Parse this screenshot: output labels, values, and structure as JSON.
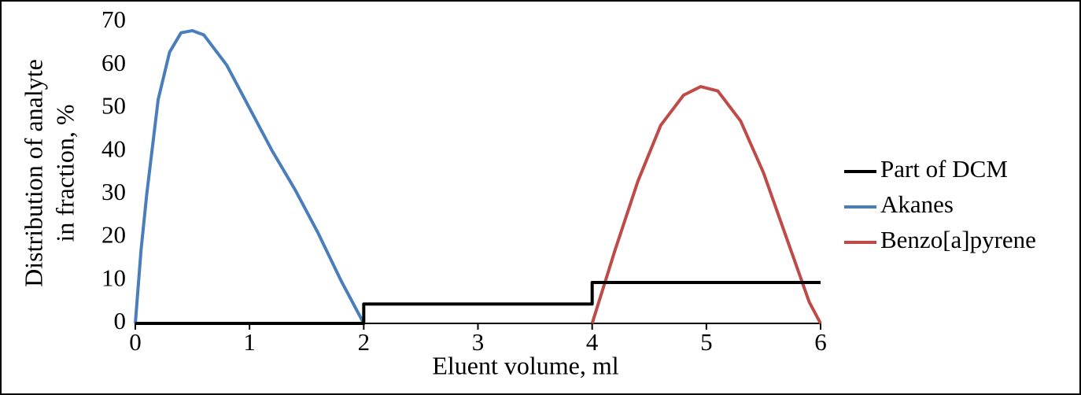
{
  "chart_data": {
    "type": "line",
    "x_label": "Eluent volume, ml",
    "y_label": [
      "Distribution of analyte",
      "in fraction, %"
    ],
    "xlim": [
      0,
      6
    ],
    "xticks": [
      0,
      1,
      2,
      3,
      4,
      5,
      6
    ],
    "ylim": [
      0,
      70
    ],
    "yticks": [
      0,
      10,
      20,
      30,
      40,
      50,
      60,
      70
    ],
    "grid": false,
    "legend": "right",
    "series": [
      {
        "name": "Part of DCM",
        "color": "#000000",
        "x": [
          0,
          2,
          2,
          4,
          4,
          6
        ],
        "values": [
          0,
          0,
          4.5,
          4.5,
          9.5,
          9.5
        ]
      },
      {
        "name": "Akanes",
        "color": "#4a7ebb",
        "x": [
          0,
          0.05,
          0.1,
          0.2,
          0.3,
          0.4,
          0.5,
          0.6,
          0.8,
          1.0,
          1.2,
          1.4,
          1.6,
          1.8,
          2.0
        ],
        "values": [
          0,
          17,
          30,
          52,
          63,
          67.5,
          68,
          67,
          60,
          50,
          40,
          31,
          21,
          10,
          0
        ]
      },
      {
        "name": "Benzo[a]pyrene",
        "color": "#be4b48",
        "x": [
          4,
          4.2,
          4.4,
          4.6,
          4.8,
          4.95,
          5.1,
          5.3,
          5.5,
          5.7,
          5.9,
          6
        ],
        "values": [
          0,
          17,
          33,
          46,
          53,
          55,
          54,
          47,
          35,
          20,
          5,
          0
        ]
      }
    ]
  }
}
